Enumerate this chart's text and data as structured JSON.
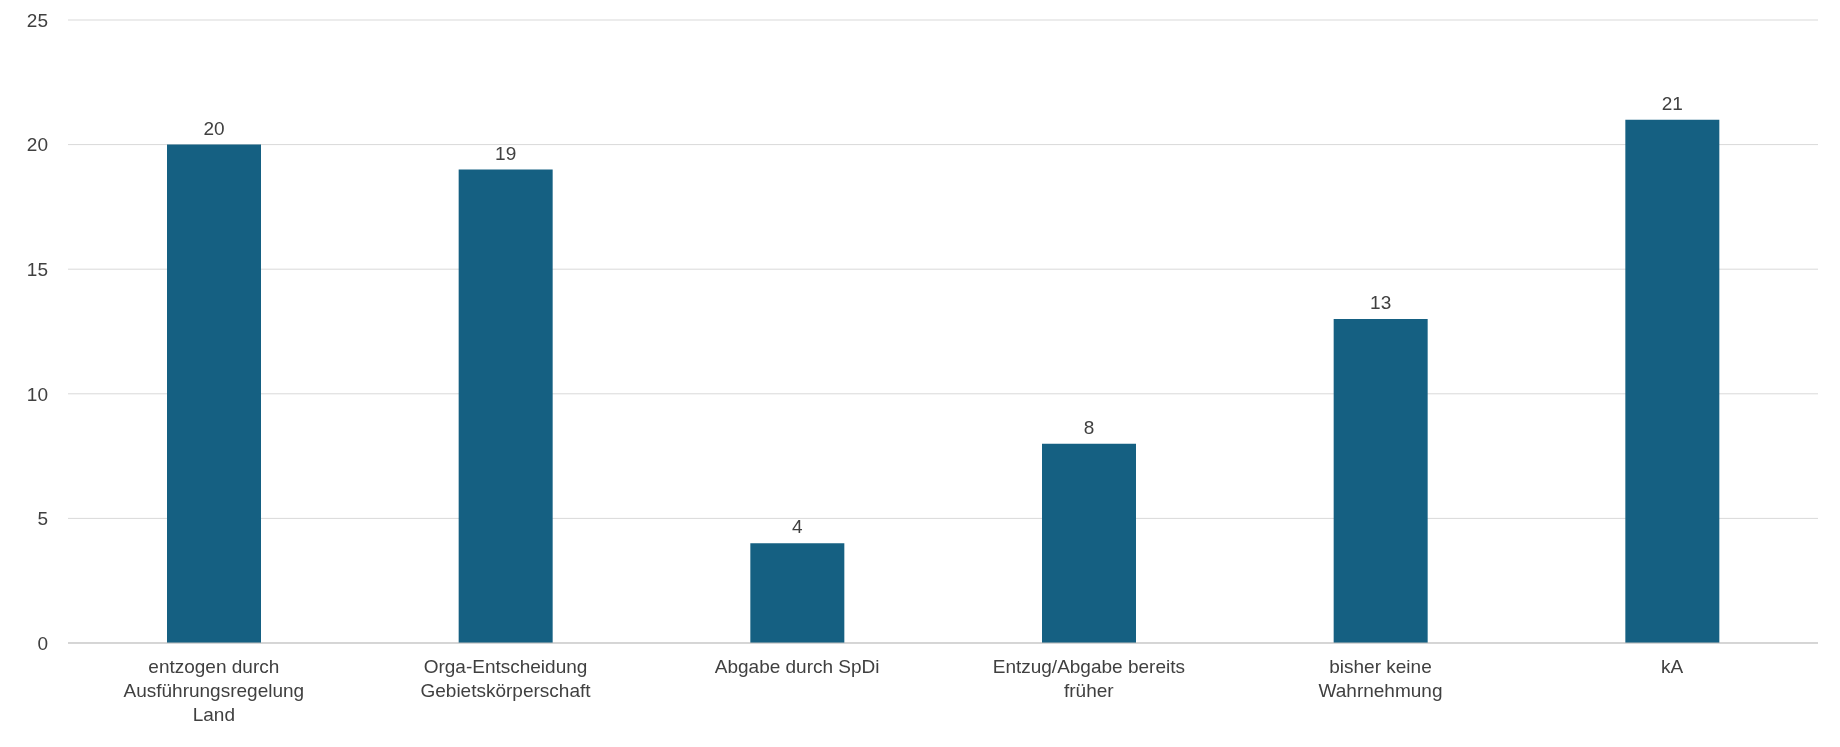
{
  "chart_data": {
    "type": "bar",
    "categories": [
      "entzogen durch Ausführungsregelung Land",
      "Orga-Entscheidung Gebietskörperschaft",
      "Abgabe durch SpDi",
      "Entzug/Abgabe bereits früher",
      "bisher keine Wahrnehmung",
      "kA"
    ],
    "values": [
      20,
      19,
      4,
      8,
      13,
      21
    ],
    "color": "#156082",
    "ylim": [
      0,
      25
    ],
    "yticks": [
      0,
      5,
      10,
      15,
      20,
      25
    ],
    "grid": "y",
    "data_labels": true
  }
}
